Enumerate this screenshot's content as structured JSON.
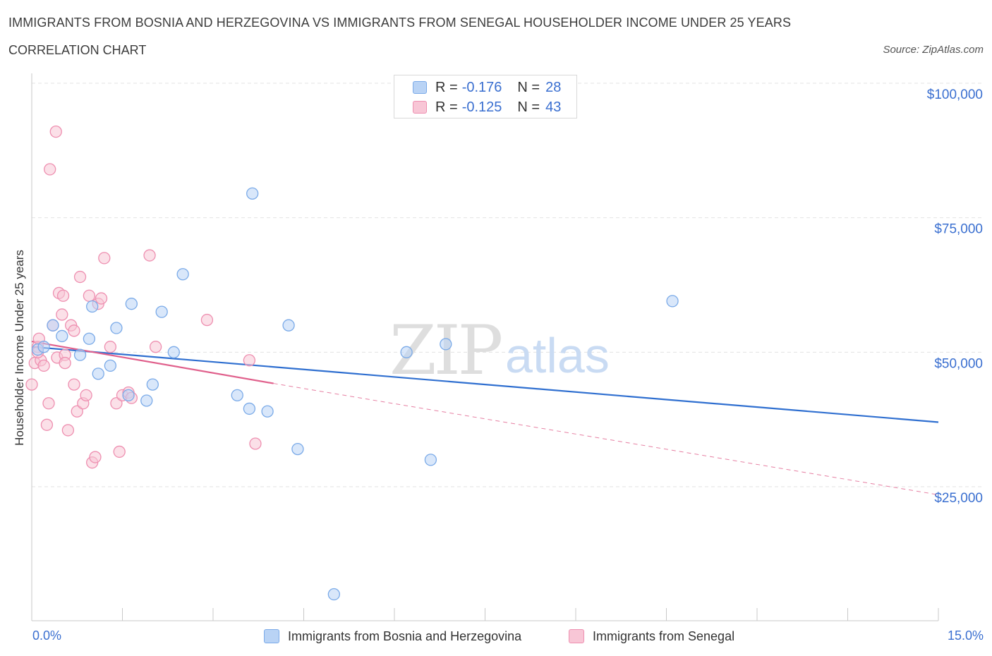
{
  "title": "IMMIGRANTS FROM BOSNIA AND HERZEGOVINA VS IMMIGRANTS FROM SENEGAL HOUSEHOLDER INCOME UNDER 25 YEARS",
  "subtitle": "CORRELATION CHART",
  "source": "Source: ZipAtlas.com",
  "watermark": {
    "zip": "ZIP",
    "atlas": "atlas"
  },
  "colors": {
    "blue": "#7aaae8",
    "blue_fill": "#b9d3f5",
    "blue_line": "#2f6fd0",
    "pink": "#ee8fb0",
    "pink_fill": "#f8c6d6",
    "pink_line": "#e0608c",
    "axis_text": "#3a6fd0",
    "grid": "#e3e3e3"
  },
  "legend": {
    "rows": [
      {
        "r_label": "R =",
        "r_value": "-0.176",
        "n_label": "N =",
        "n_value": "28",
        "series": "blue"
      },
      {
        "r_label": "R =",
        "r_value": "-0.125",
        "n_label": "N =",
        "n_value": "43",
        "series": "pink"
      }
    ]
  },
  "bottom_legend": [
    {
      "label": "Immigrants from Bosnia and Herzegovina",
      "series": "blue"
    },
    {
      "label": "Immigrants from Senegal",
      "series": "pink"
    }
  ],
  "chart_data": {
    "type": "scatter",
    "title": "IMMIGRANTS FROM BOSNIA AND HERZEGOVINA VS IMMIGRANTS FROM SENEGAL HOUSEHOLDER INCOME UNDER 25 YEARS",
    "xlabel": "",
    "ylabel": "Householder Income Under 25 years",
    "xlim": [
      0,
      15
    ],
    "ylim": [
      0,
      100000
    ],
    "x_tick_labels": [
      "0.0%",
      "15.0%"
    ],
    "y_ticks": [
      {
        "value": 100000,
        "label": "$100,000"
      },
      {
        "value": 75000,
        "label": "$75,000"
      },
      {
        "value": 50000,
        "label": "$50,000"
      },
      {
        "value": 25000,
        "label": "$25,000"
      }
    ],
    "grid": true,
    "series": [
      {
        "name": "Immigrants from Bosnia and Herzegovina",
        "color_key": "blue",
        "points": [
          [
            0.1,
            50500
          ],
          [
            0.2,
            51000
          ],
          [
            0.35,
            55000
          ],
          [
            0.5,
            53000
          ],
          [
            0.8,
            49500
          ],
          [
            0.95,
            52500
          ],
          [
            1.0,
            58500
          ],
          [
            1.1,
            46000
          ],
          [
            1.3,
            47500
          ],
          [
            1.4,
            54500
          ],
          [
            1.6,
            42000
          ],
          [
            1.65,
            59000
          ],
          [
            1.9,
            41000
          ],
          [
            2.0,
            44000
          ],
          [
            2.15,
            57500
          ],
          [
            2.35,
            50000
          ],
          [
            2.5,
            64500
          ],
          [
            3.4,
            42000
          ],
          [
            3.6,
            39500
          ],
          [
            3.65,
            79500
          ],
          [
            3.9,
            39000
          ],
          [
            4.25,
            55000
          ],
          [
            4.4,
            32000
          ],
          [
            5.0,
            5000
          ],
          [
            6.2,
            50000
          ],
          [
            6.6,
            30000
          ],
          [
            6.85,
            51500
          ],
          [
            10.6,
            59500
          ]
        ],
        "trend": {
          "x": [
            0,
            15
          ],
          "y": [
            51000,
            37000
          ],
          "style": "solid"
        }
      },
      {
        "name": "Immigrants from Senegal",
        "color_key": "pink",
        "points": [
          [
            0.0,
            44000
          ],
          [
            0.05,
            48000
          ],
          [
            0.1,
            51000
          ],
          [
            0.12,
            52500
          ],
          [
            0.15,
            48500
          ],
          [
            0.2,
            47500
          ],
          [
            0.25,
            36500
          ],
          [
            0.28,
            40500
          ],
          [
            0.3,
            84000
          ],
          [
            0.35,
            55000
          ],
          [
            0.4,
            91000
          ],
          [
            0.42,
            49000
          ],
          [
            0.45,
            61000
          ],
          [
            0.5,
            57000
          ],
          [
            0.52,
            60500
          ],
          [
            0.55,
            49500
          ],
          [
            0.6,
            35500
          ],
          [
            0.65,
            55000
          ],
          [
            0.7,
            54000
          ],
          [
            0.7,
            44000
          ],
          [
            0.75,
            39000
          ],
          [
            0.8,
            64000
          ],
          [
            0.85,
            40500
          ],
          [
            0.9,
            42000
          ],
          [
            0.95,
            60500
          ],
          [
            1.0,
            29500
          ],
          [
            1.05,
            30500
          ],
          [
            1.1,
            59000
          ],
          [
            1.15,
            60000
          ],
          [
            1.2,
            67500
          ],
          [
            1.3,
            51000
          ],
          [
            1.4,
            40500
          ],
          [
            1.45,
            31500
          ],
          [
            1.5,
            42000
          ],
          [
            1.6,
            42500
          ],
          [
            1.65,
            41500
          ],
          [
            1.95,
            68000
          ],
          [
            2.05,
            51000
          ],
          [
            2.9,
            56000
          ],
          [
            3.6,
            48500
          ],
          [
            3.7,
            33000
          ],
          [
            0.1,
            50000
          ],
          [
            0.55,
            48000
          ]
        ],
        "trend_solid": {
          "x": [
            0,
            4.0
          ],
          "y": [
            52000,
            44200
          ]
        },
        "trend_dashed": {
          "x": [
            4.0,
            15
          ],
          "y": [
            44200,
            23500
          ]
        }
      }
    ]
  }
}
